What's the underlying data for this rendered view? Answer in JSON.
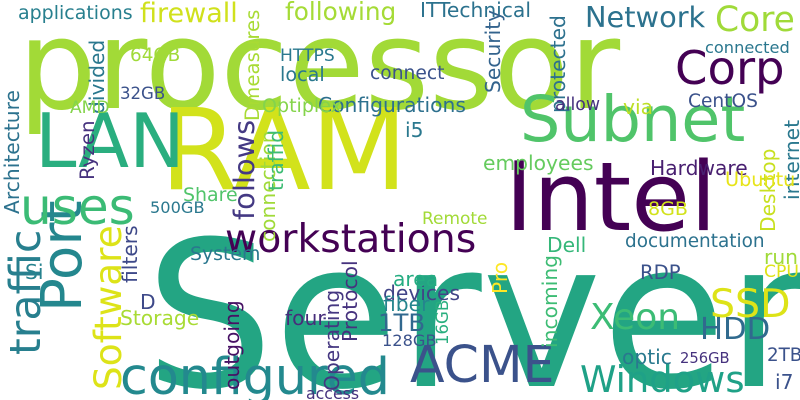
{
  "words": [
    {
      "id": "server",
      "text": "Server",
      "color": "#23a583",
      "vertical": false
    },
    {
      "id": "processor",
      "text": "processor",
      "color": "#a2da37",
      "vertical": false
    },
    {
      "id": "ram",
      "text": "RAM",
      "color": "#d2e21b",
      "vertical": false
    },
    {
      "id": "intel",
      "text": "Intel",
      "color": "#440154",
      "vertical": false
    },
    {
      "id": "lan",
      "text": "LAN",
      "color": "#2aae7f",
      "vertical": false
    },
    {
      "id": "subnet",
      "text": "Subnet",
      "color": "#50c46a",
      "vertical": false
    },
    {
      "id": "port",
      "text": "Port",
      "color": "#24878e",
      "vertical": true
    },
    {
      "id": "acme",
      "text": "ACME",
      "color": "#3b528b",
      "vertical": false
    },
    {
      "id": "corp",
      "text": "Corp",
      "color": "#440154",
      "vertical": false
    },
    {
      "id": "uses",
      "text": "uses",
      "color": "#3bbb75",
      "vertical": false
    },
    {
      "id": "configured",
      "text": "configured",
      "color": "#23898e",
      "vertical": false
    },
    {
      "id": "workstations",
      "text": "workstations",
      "color": "#440154",
      "vertical": false
    },
    {
      "id": "windows",
      "text": "Windows",
      "color": "#1fa187",
      "vertical": false
    },
    {
      "id": "software",
      "text": "Software",
      "color": "#dde318",
      "vertical": true
    },
    {
      "id": "traffic",
      "text": "traffic",
      "color": "#277f8e",
      "vertical": true
    },
    {
      "id": "follows",
      "text": "follows",
      "color": "#443983",
      "vertical": true
    },
    {
      "id": "ssd",
      "text": "SSD",
      "color": "#dde318",
      "vertical": false
    },
    {
      "id": "xeon",
      "text": "Xeon",
      "color": "#3cbc75",
      "vertical": false
    },
    {
      "id": "hdd",
      "text": "HDD",
      "color": "#306a8e",
      "vertical": false
    },
    {
      "id": "core",
      "text": "Core",
      "color": "#a0da39",
      "vertical": false
    },
    {
      "id": "network",
      "text": "Network",
      "color": "#2c728e",
      "vertical": false
    },
    {
      "id": "1tb",
      "text": "1TB",
      "color": "#31688e",
      "vertical": false
    },
    {
      "id": "following",
      "text": "following",
      "color": "#a5db36",
      "vertical": false
    },
    {
      "id": "firewall",
      "text": "firewall",
      "color": "#d0e11c",
      "vertical": false
    },
    {
      "id": "applications",
      "text": "applications",
      "color": "#277f8e",
      "vertical": false
    },
    {
      "id": "ittechnical",
      "text": "ITTechnical",
      "color": "#2c728e",
      "vertical": false
    },
    {
      "id": "connected",
      "text": "connected",
      "color": "#2a778e",
      "vertical": false
    },
    {
      "id": "configurations",
      "text": "Configurations",
      "color": "#2d708e",
      "vertical": false
    },
    {
      "id": "documentation",
      "text": "documentation",
      "color": "#2c728e",
      "vertical": false
    },
    {
      "id": "employees",
      "text": "employees",
      "color": "#65cb5e",
      "vertical": false
    },
    {
      "id": "hardware",
      "text": "Hardware",
      "color": "#481f70",
      "vertical": false
    },
    {
      "id": "operating",
      "text": "Operating",
      "color": "#453781",
      "vertical": true
    },
    {
      "id": "protocol",
      "text": "Protocol",
      "color": "#46327e",
      "vertical": true
    },
    {
      "id": "storage",
      "text": "Storage",
      "color": "#a8db34",
      "vertical": false
    },
    {
      "id": "system",
      "text": "System",
      "color": "#2a778e",
      "vertical": false
    },
    {
      "id": "devices",
      "text": "devices",
      "color": "#414487",
      "vertical": false
    },
    {
      "id": "incoming",
      "text": "incoming",
      "color": "#3dbc74",
      "vertical": true
    },
    {
      "id": "outgoing",
      "text": "outgoing",
      "color": "#471164",
      "vertical": true
    },
    {
      "id": "connection",
      "text": "connection",
      "color": "#a0da39",
      "vertical": true
    },
    {
      "id": "internet",
      "text": "internet",
      "color": "#2a788e",
      "vertical": true
    },
    {
      "id": "desktop",
      "text": "Desktop",
      "color": "#c8e020",
      "vertical": true
    },
    {
      "id": "protected",
      "text": "protected",
      "color": "#2d718e",
      "vertical": true
    },
    {
      "id": "security",
      "text": "Security",
      "color": "#33638d",
      "vertical": true
    },
    {
      "id": "architecture",
      "text": "Architecture",
      "color": "#2c728e",
      "vertical": true
    },
    {
      "id": "optiplex",
      "text": "Optiplex",
      "color": "#84d44b",
      "vertical": false
    },
    {
      "id": "ubuntu",
      "text": "Ubuntu",
      "color": "#e7e419",
      "vertical": false
    },
    {
      "id": "centos",
      "text": "CentOS",
      "color": "#3b528b",
      "vertical": false
    },
    {
      "id": "dmeasures",
      "text": "Dmeasures",
      "color": "#a8db34",
      "vertical": true
    },
    {
      "id": "traffid",
      "text": "traffid",
      "color": "#3dbc74",
      "vertical": true
    },
    {
      "id": "divided",
      "text": "divided",
      "color": "#2a788e",
      "vertical": true
    },
    {
      "id": "filters",
      "text": "filters",
      "color": "#3e4989",
      "vertical": true
    },
    {
      "id": "fiber",
      "text": "fiber",
      "color": "#25858e",
      "vertical": false
    },
    {
      "id": "optic",
      "text": "optic",
      "color": "#29798e",
      "vertical": false
    },
    {
      "id": "remote",
      "text": "Remote",
      "color": "#a2da37",
      "vertical": false
    },
    {
      "id": "share",
      "text": "Share",
      "color": "#50c46a",
      "vertical": false
    },
    {
      "id": "https",
      "text": "HTTPS",
      "color": "#2a788e",
      "vertical": false
    },
    {
      "id": "local",
      "text": "local",
      "color": "#2a788e",
      "vertical": false
    },
    {
      "id": "connect",
      "text": "connect",
      "color": "#3b528b",
      "vertical": false
    },
    {
      "id": "allow",
      "text": "allow",
      "color": "#46327e",
      "vertical": false
    },
    {
      "id": "via",
      "text": "via",
      "color": "#bddf26",
      "vertical": false
    },
    {
      "id": "run",
      "text": "run",
      "color": "#a0da39",
      "vertical": false
    },
    {
      "id": "area",
      "text": "area",
      "color": "#25ac82",
      "vertical": false
    },
    {
      "id": "four",
      "text": "four",
      "color": "#472d7b",
      "vertical": false
    },
    {
      "id": "access",
      "text": "access",
      "color": "#46327e",
      "vertical": false
    },
    {
      "id": "dell",
      "text": "Dell",
      "color": "#35b779",
      "vertical": false
    },
    {
      "id": "pro",
      "text": "Pro",
      "color": "#fde725",
      "vertical": true
    },
    {
      "id": "rdp",
      "text": "RDP",
      "color": "#3b528b",
      "vertical": false
    },
    {
      "id": "cpu",
      "text": "CPU",
      "color": "#dde318",
      "vertical": false
    },
    {
      "id": "amd",
      "text": "AMD",
      "color": "#84d44b",
      "vertical": false
    },
    {
      "id": "ryzen",
      "text": "Ryzen",
      "color": "#46327e",
      "vertical": true
    },
    {
      "id": "64gb",
      "text": "64GB",
      "color": "#a0da39",
      "vertical": false
    },
    {
      "id": "32gb",
      "text": "32GB",
      "color": "#3b528b",
      "vertical": false
    },
    {
      "id": "500gb",
      "text": "500GB",
      "color": "#2a788e",
      "vertical": false
    },
    {
      "id": "16gb",
      "text": "16GB",
      "color": "#29af7f",
      "vertical": true
    },
    {
      "id": "128gb",
      "text": "128GB",
      "color": "#3b528b",
      "vertical": false
    },
    {
      "id": "8gb",
      "text": "8GB",
      "color": "#d2e21b",
      "vertical": false
    },
    {
      "id": "256gb",
      "text": "256GB",
      "color": "#46327e",
      "vertical": false
    },
    {
      "id": "2tb",
      "text": "2TB",
      "color": "#3b528b",
      "vertical": false
    },
    {
      "id": "i5",
      "text": "i5",
      "color": "#2a788e",
      "vertical": false
    },
    {
      "id": "i7",
      "text": "i7",
      "color": "#3b528b",
      "vertical": false
    },
    {
      "id": "si",
      "text": "Si",
      "color": "#26828e",
      "vertical": false
    },
    {
      "id": "d",
      "text": "D",
      "color": "#3e4989",
      "vertical": false
    }
  ]
}
